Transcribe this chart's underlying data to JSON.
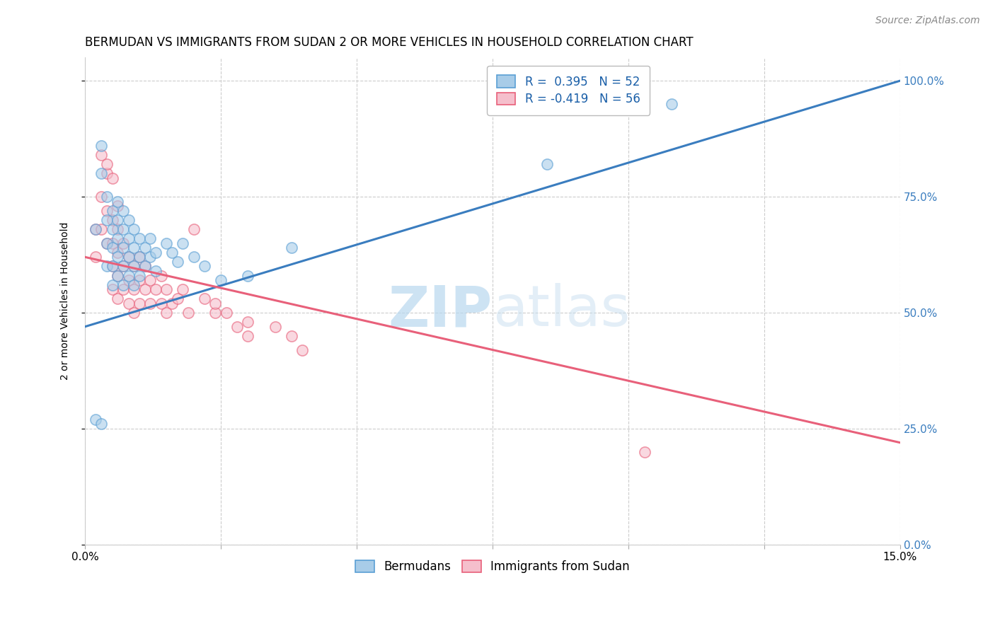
{
  "title": "BERMUDAN VS IMMIGRANTS FROM SUDAN 2 OR MORE VEHICLES IN HOUSEHOLD CORRELATION CHART",
  "source": "Source: ZipAtlas.com",
  "ylabel_label": "2 or more Vehicles in Household",
  "xlim": [
    0.0,
    0.15
  ],
  "ylim": [
    0.0,
    1.05
  ],
  "blue_R": 0.395,
  "blue_N": 52,
  "pink_R": -0.419,
  "pink_N": 56,
  "blue_color": "#a8cce8",
  "pink_color": "#f5bfcc",
  "blue_edge_color": "#5a9fd4",
  "pink_edge_color": "#e8607a",
  "blue_line_color": "#3a7dbf",
  "pink_line_color": "#e8607a",
  "legend_R_color": "#1a5fa8",
  "watermark_zip": "ZIP",
  "watermark_atlas": "atlas",
  "blue_trend_x": [
    0.0,
    0.15
  ],
  "blue_trend_y": [
    0.47,
    1.0
  ],
  "pink_trend_x": [
    0.0,
    0.15
  ],
  "pink_trend_y": [
    0.62,
    0.22
  ],
  "blue_scatter_x": [
    0.002,
    0.003,
    0.003,
    0.004,
    0.004,
    0.004,
    0.004,
    0.005,
    0.005,
    0.005,
    0.005,
    0.005,
    0.006,
    0.006,
    0.006,
    0.006,
    0.006,
    0.007,
    0.007,
    0.007,
    0.007,
    0.007,
    0.008,
    0.008,
    0.008,
    0.008,
    0.009,
    0.009,
    0.009,
    0.009,
    0.01,
    0.01,
    0.01,
    0.011,
    0.011,
    0.012,
    0.012,
    0.013,
    0.013,
    0.015,
    0.016,
    0.017,
    0.018,
    0.02,
    0.022,
    0.025,
    0.03,
    0.038,
    0.002,
    0.003,
    0.108,
    0.085
  ],
  "blue_scatter_y": [
    0.68,
    0.86,
    0.8,
    0.75,
    0.7,
    0.65,
    0.6,
    0.72,
    0.68,
    0.64,
    0.6,
    0.56,
    0.74,
    0.7,
    0.66,
    0.62,
    0.58,
    0.72,
    0.68,
    0.64,
    0.6,
    0.56,
    0.7,
    0.66,
    0.62,
    0.58,
    0.68,
    0.64,
    0.6,
    0.56,
    0.66,
    0.62,
    0.58,
    0.64,
    0.6,
    0.66,
    0.62,
    0.63,
    0.59,
    0.65,
    0.63,
    0.61,
    0.65,
    0.62,
    0.6,
    0.57,
    0.58,
    0.64,
    0.27,
    0.26,
    0.95,
    0.82
  ],
  "pink_scatter_x": [
    0.002,
    0.002,
    0.003,
    0.003,
    0.004,
    0.004,
    0.004,
    0.005,
    0.005,
    0.005,
    0.005,
    0.006,
    0.006,
    0.006,
    0.006,
    0.007,
    0.007,
    0.007,
    0.008,
    0.008,
    0.008,
    0.009,
    0.009,
    0.009,
    0.01,
    0.01,
    0.01,
    0.011,
    0.011,
    0.012,
    0.012,
    0.013,
    0.014,
    0.014,
    0.015,
    0.015,
    0.016,
    0.017,
    0.018,
    0.019,
    0.02,
    0.022,
    0.024,
    0.026,
    0.028,
    0.03,
    0.035,
    0.04,
    0.024,
    0.03,
    0.038,
    0.103,
    0.003,
    0.004,
    0.005,
    0.006
  ],
  "pink_scatter_y": [
    0.68,
    0.62,
    0.75,
    0.68,
    0.8,
    0.72,
    0.65,
    0.7,
    0.65,
    0.6,
    0.55,
    0.68,
    0.63,
    0.58,
    0.53,
    0.65,
    0.6,
    0.55,
    0.62,
    0.57,
    0.52,
    0.6,
    0.55,
    0.5,
    0.62,
    0.57,
    0.52,
    0.6,
    0.55,
    0.57,
    0.52,
    0.55,
    0.58,
    0.52,
    0.55,
    0.5,
    0.52,
    0.53,
    0.55,
    0.5,
    0.68,
    0.53,
    0.5,
    0.5,
    0.47,
    0.45,
    0.47,
    0.42,
    0.52,
    0.48,
    0.45,
    0.2,
    0.84,
    0.82,
    0.79,
    0.73
  ],
  "title_fontsize": 12,
  "source_fontsize": 10,
  "axis_label_fontsize": 10,
  "tick_fontsize": 11,
  "legend_fontsize": 12,
  "scatter_size": 120,
  "scatter_alpha": 0.6,
  "scatter_linewidth": 1.2
}
